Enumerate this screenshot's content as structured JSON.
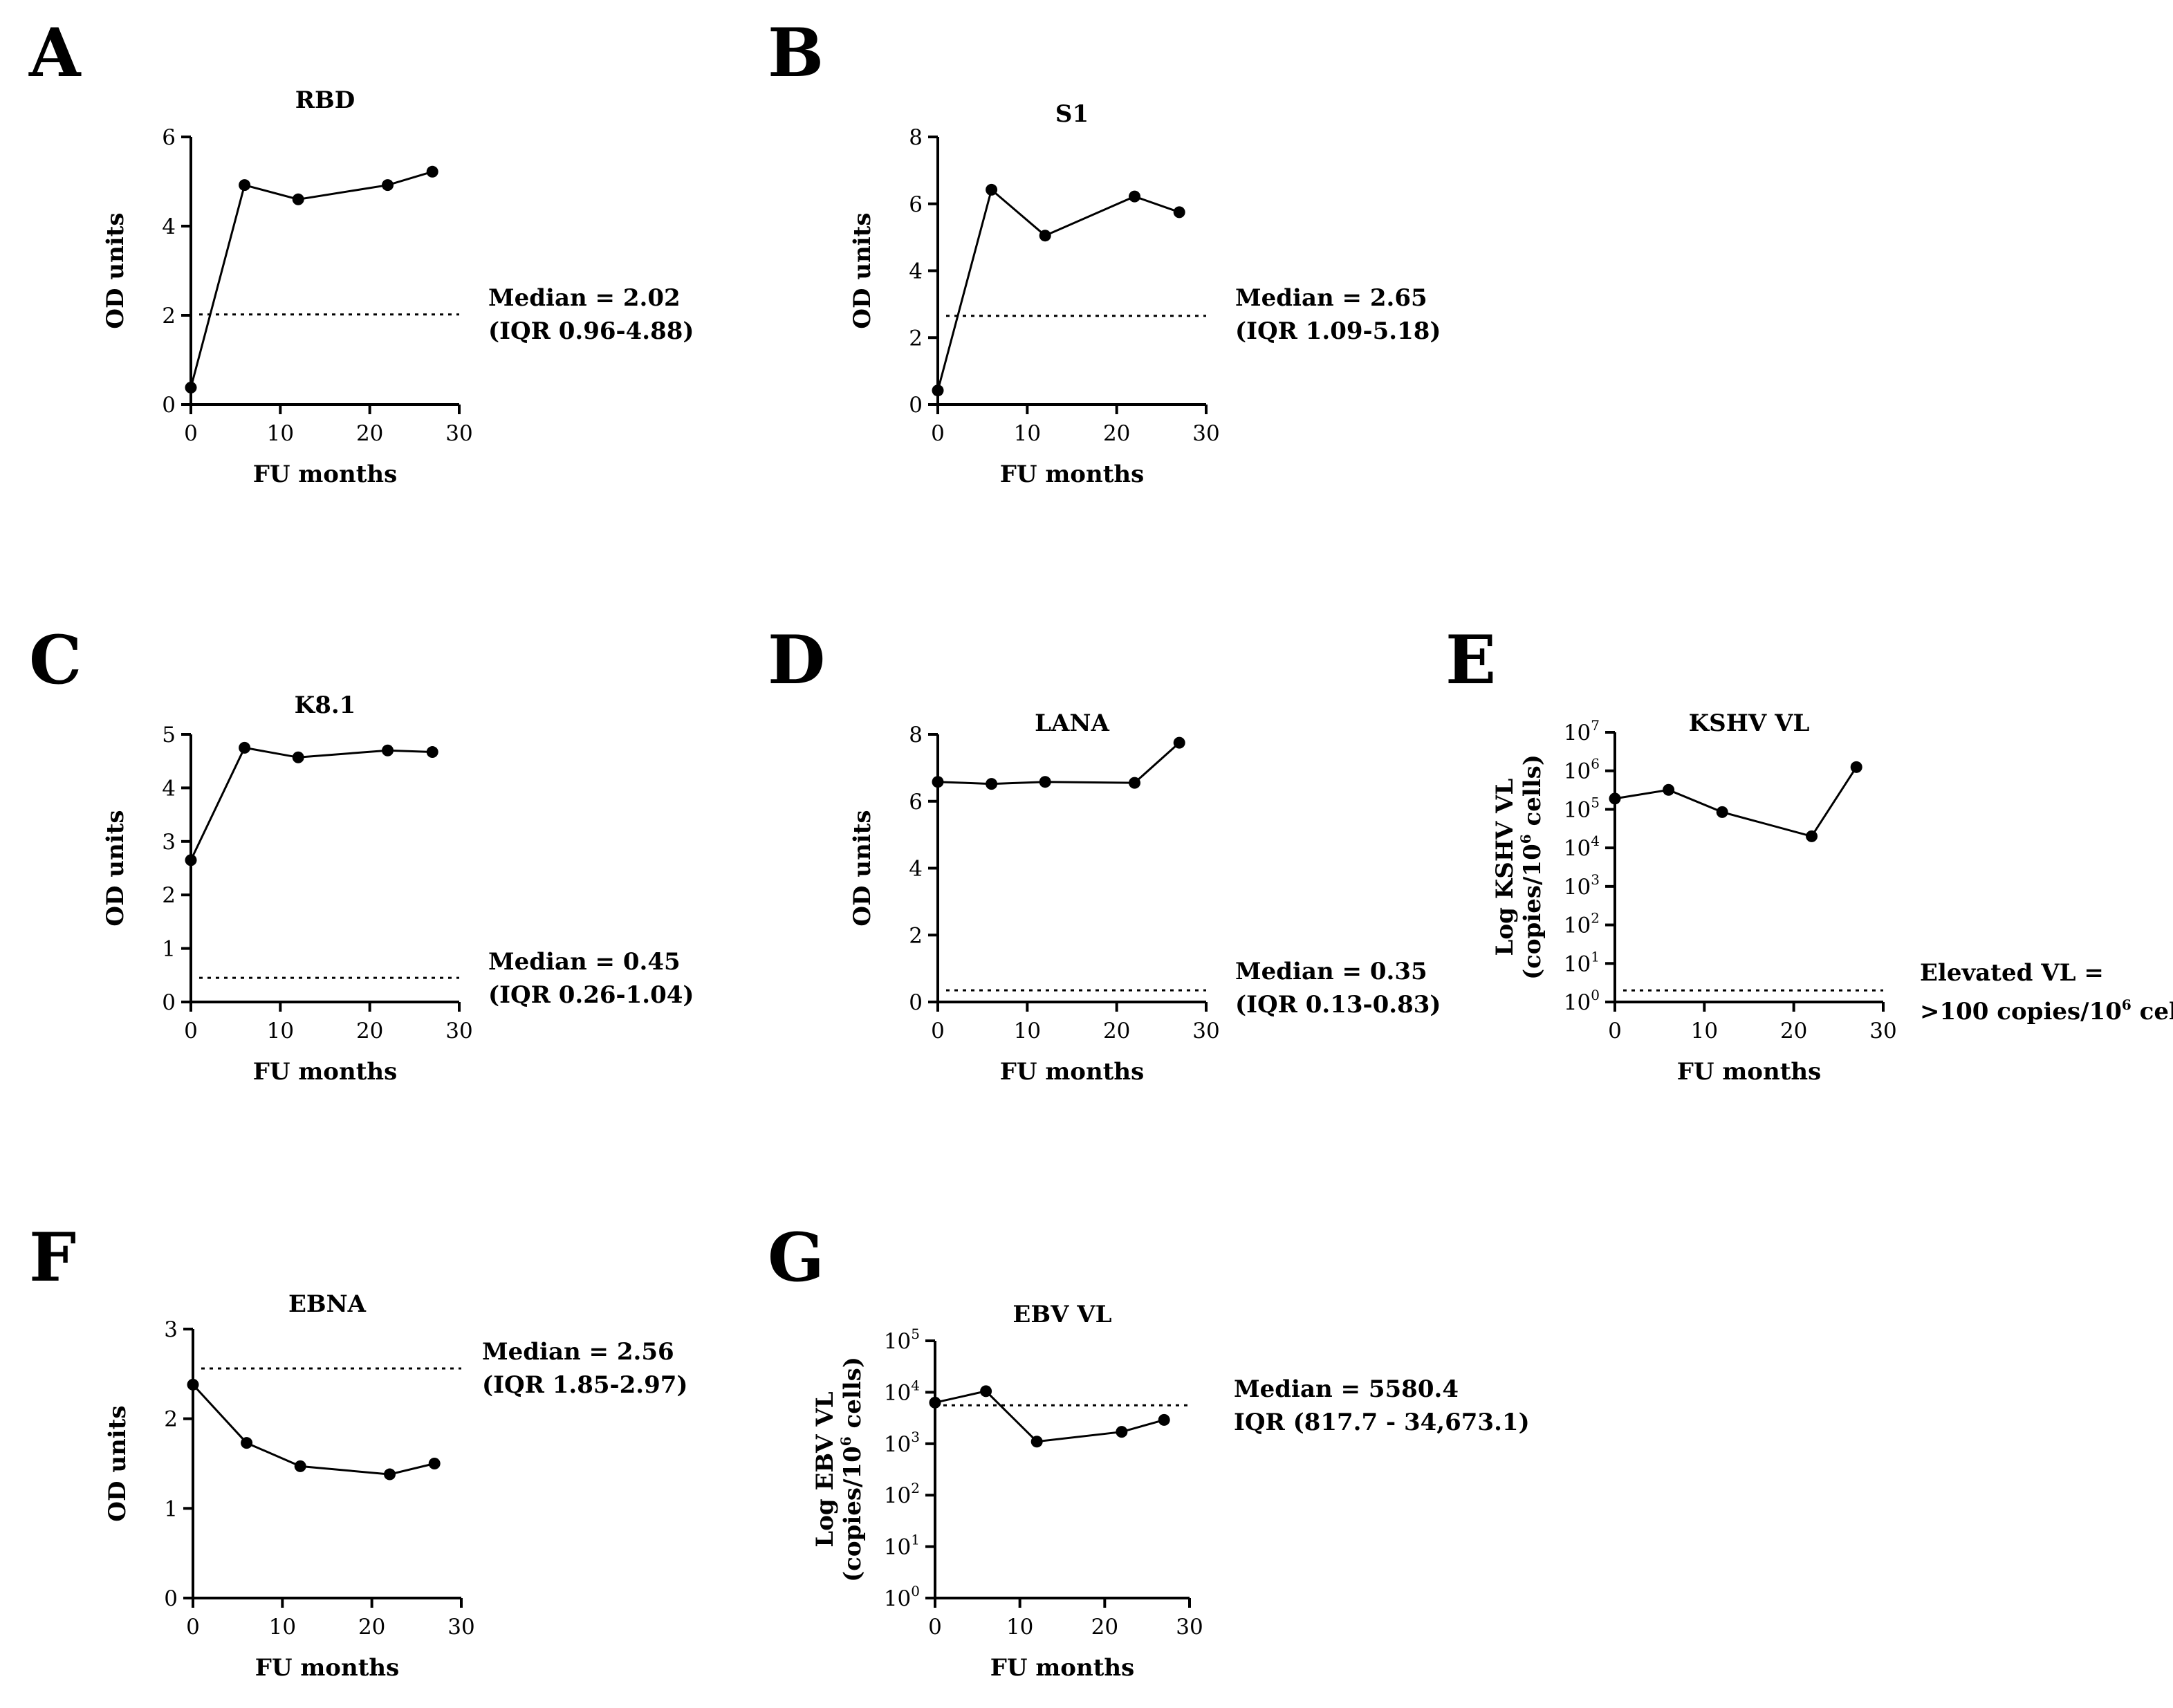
{
  "chart_data": [
    {
      "panel": "A",
      "type": "line",
      "title": "RBD",
      "xlabel": "FU months",
      "ylabel": "OD units",
      "scale": "linear",
      "xlim": [
        0,
        30
      ],
      "ylim": [
        0,
        6
      ],
      "xticks": [
        "0",
        "10",
        "20",
        "30"
      ],
      "yticks": [
        "0",
        "2",
        "4",
        "6"
      ],
      "x": [
        0,
        6,
        12,
        22,
        27
      ],
      "values": [
        0.38,
        4.92,
        4.6,
        4.92,
        5.22
      ],
      "reference": 2.02,
      "annotation": [
        "Median = 2.02",
        "(IQR 0.96-4.88)"
      ]
    },
    {
      "panel": "B",
      "type": "line",
      "title": "S1",
      "xlabel": "FU months",
      "ylabel": "OD units",
      "scale": "linear",
      "xlim": [
        0,
        30
      ],
      "ylim": [
        0,
        8
      ],
      "xticks": [
        "0",
        "10",
        "20",
        "30"
      ],
      "yticks": [
        "0",
        "2",
        "4",
        "6",
        "8"
      ],
      "x": [
        0,
        6,
        12,
        22,
        27
      ],
      "values": [
        0.42,
        6.42,
        5.05,
        6.22,
        5.75
      ],
      "reference": 2.65,
      "annotation": [
        "Median = 2.65",
        "(IQR 1.09-5.18)"
      ]
    },
    {
      "panel": "C",
      "type": "line",
      "title": "K8.1",
      "xlabel": "FU months",
      "ylabel": "OD units",
      "scale": "linear",
      "xlim": [
        0,
        30
      ],
      "ylim": [
        0,
        5
      ],
      "xticks": [
        "0",
        "10",
        "20",
        "30"
      ],
      "yticks": [
        "0",
        "1",
        "2",
        "3",
        "4",
        "5"
      ],
      "x": [
        0,
        6,
        12,
        22,
        27
      ],
      "values": [
        2.65,
        4.75,
        4.57,
        4.7,
        4.67
      ],
      "reference": 0.45,
      "annotation": [
        "Median = 0.45",
        "(IQR 0.26-1.04)"
      ]
    },
    {
      "panel": "D",
      "type": "line",
      "title": "LANA",
      "xlabel": "FU months",
      "ylabel": "OD units",
      "scale": "linear",
      "xlim": [
        0,
        30
      ],
      "ylim": [
        0,
        8
      ],
      "xticks": [
        "0",
        "10",
        "20",
        "30"
      ],
      "yticks": [
        "0",
        "2",
        "4",
        "6",
        "8"
      ],
      "x": [
        0,
        6,
        12,
        22,
        27
      ],
      "values": [
        6.58,
        6.52,
        6.58,
        6.55,
        7.75
      ],
      "reference": 0.35,
      "annotation": [
        "Median = 0.35",
        "(IQR 0.13-0.83)"
      ]
    },
    {
      "panel": "E",
      "type": "line",
      "title": "KSHV VL",
      "xlabel": "FU months",
      "ylabel": [
        "Log KSHV VL",
        "(copies/10",
        "6",
        " cells)"
      ],
      "scale": "log",
      "xlim": [
        0,
        30
      ],
      "ylim": [
        1,
        10000000
      ],
      "xticks": [
        "0",
        "10",
        "20",
        "30"
      ],
      "yticks": [
        [
          "10",
          "0"
        ],
        [
          "10",
          "1"
        ],
        [
          "10",
          "2"
        ],
        [
          "10",
          "3"
        ],
        [
          "10",
          "4"
        ],
        [
          "10",
          "5"
        ],
        [
          "10",
          "6"
        ],
        [
          "10",
          "7"
        ]
      ],
      "x": [
        0,
        6,
        12,
        22,
        27
      ],
      "values": [
        190000,
        320000,
        85000,
        20000,
        1250000
      ],
      "reference": 2,
      "annotation_lines": [
        [
          "Elevated VL ="
        ],
        [
          ">100 copies/10",
          "6",
          " cells"
        ]
      ]
    },
    {
      "panel": "F",
      "type": "line",
      "title": "EBNA",
      "xlabel": "FU months",
      "ylabel": "OD units",
      "scale": "linear",
      "xlim": [
        0,
        30
      ],
      "ylim": [
        0,
        3
      ],
      "xticks": [
        "0",
        "10",
        "20",
        "30"
      ],
      "yticks": [
        "0",
        "1",
        "2",
        "3"
      ],
      "x": [
        0,
        6,
        12,
        22,
        27
      ],
      "values": [
        2.38,
        1.73,
        1.47,
        1.38,
        1.5
      ],
      "reference": 2.56,
      "annotation": [
        "Median = 2.56",
        "(IQR 1.85-2.97)"
      ]
    },
    {
      "panel": "G",
      "type": "line",
      "title": "EBV VL",
      "xlabel": "FU months",
      "ylabel": [
        "Log EBV VL",
        "(copies/10",
        "6",
        " cells)"
      ],
      "scale": "log",
      "xlim": [
        0,
        30
      ],
      "ylim": [
        1,
        100000
      ],
      "xticks": [
        "0",
        "10",
        "20",
        "30"
      ],
      "yticks": [
        [
          "10",
          "0"
        ],
        [
          "10",
          "1"
        ],
        [
          "10",
          "2"
        ],
        [
          "10",
          "3"
        ],
        [
          "10",
          "4"
        ],
        [
          "10",
          "5"
        ]
      ],
      "x": [
        0,
        6,
        12,
        22,
        27
      ],
      "values": [
        6300,
        10500,
        1100,
        1700,
        2900
      ],
      "reference": 5580.4,
      "annotation": [
        "Median =  5580.4",
        "IQR (817.7 - 34,673.1)"
      ]
    }
  ]
}
